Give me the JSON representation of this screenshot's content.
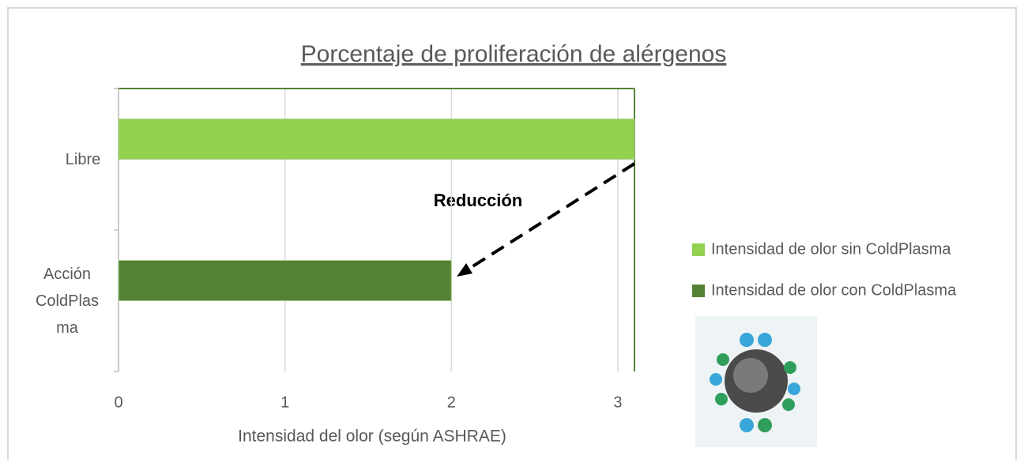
{
  "chart_data": {
    "type": "bar",
    "orientation": "horizontal",
    "title": "Porcentaje de proliferación de alérgenos",
    "x_label": "Intensidad del olor (según ASHRAE)",
    "annotation": "Reducción",
    "categories": [
      "Libre",
      "Acción ColdPlasma"
    ],
    "series": [
      {
        "name": "Intensidad de olor sin ColdPlasma",
        "color": "#92d050",
        "values": [
          3.1,
          null
        ]
      },
      {
        "name": "Intensidad de olor con ColdPlasma",
        "color": "#548235",
        "values": [
          null,
          2
        ]
      }
    ],
    "xlim": [
      0,
      3.1
    ],
    "xticks": [
      0,
      1,
      2,
      3
    ],
    "grid": true,
    "legend": "right"
  }
}
